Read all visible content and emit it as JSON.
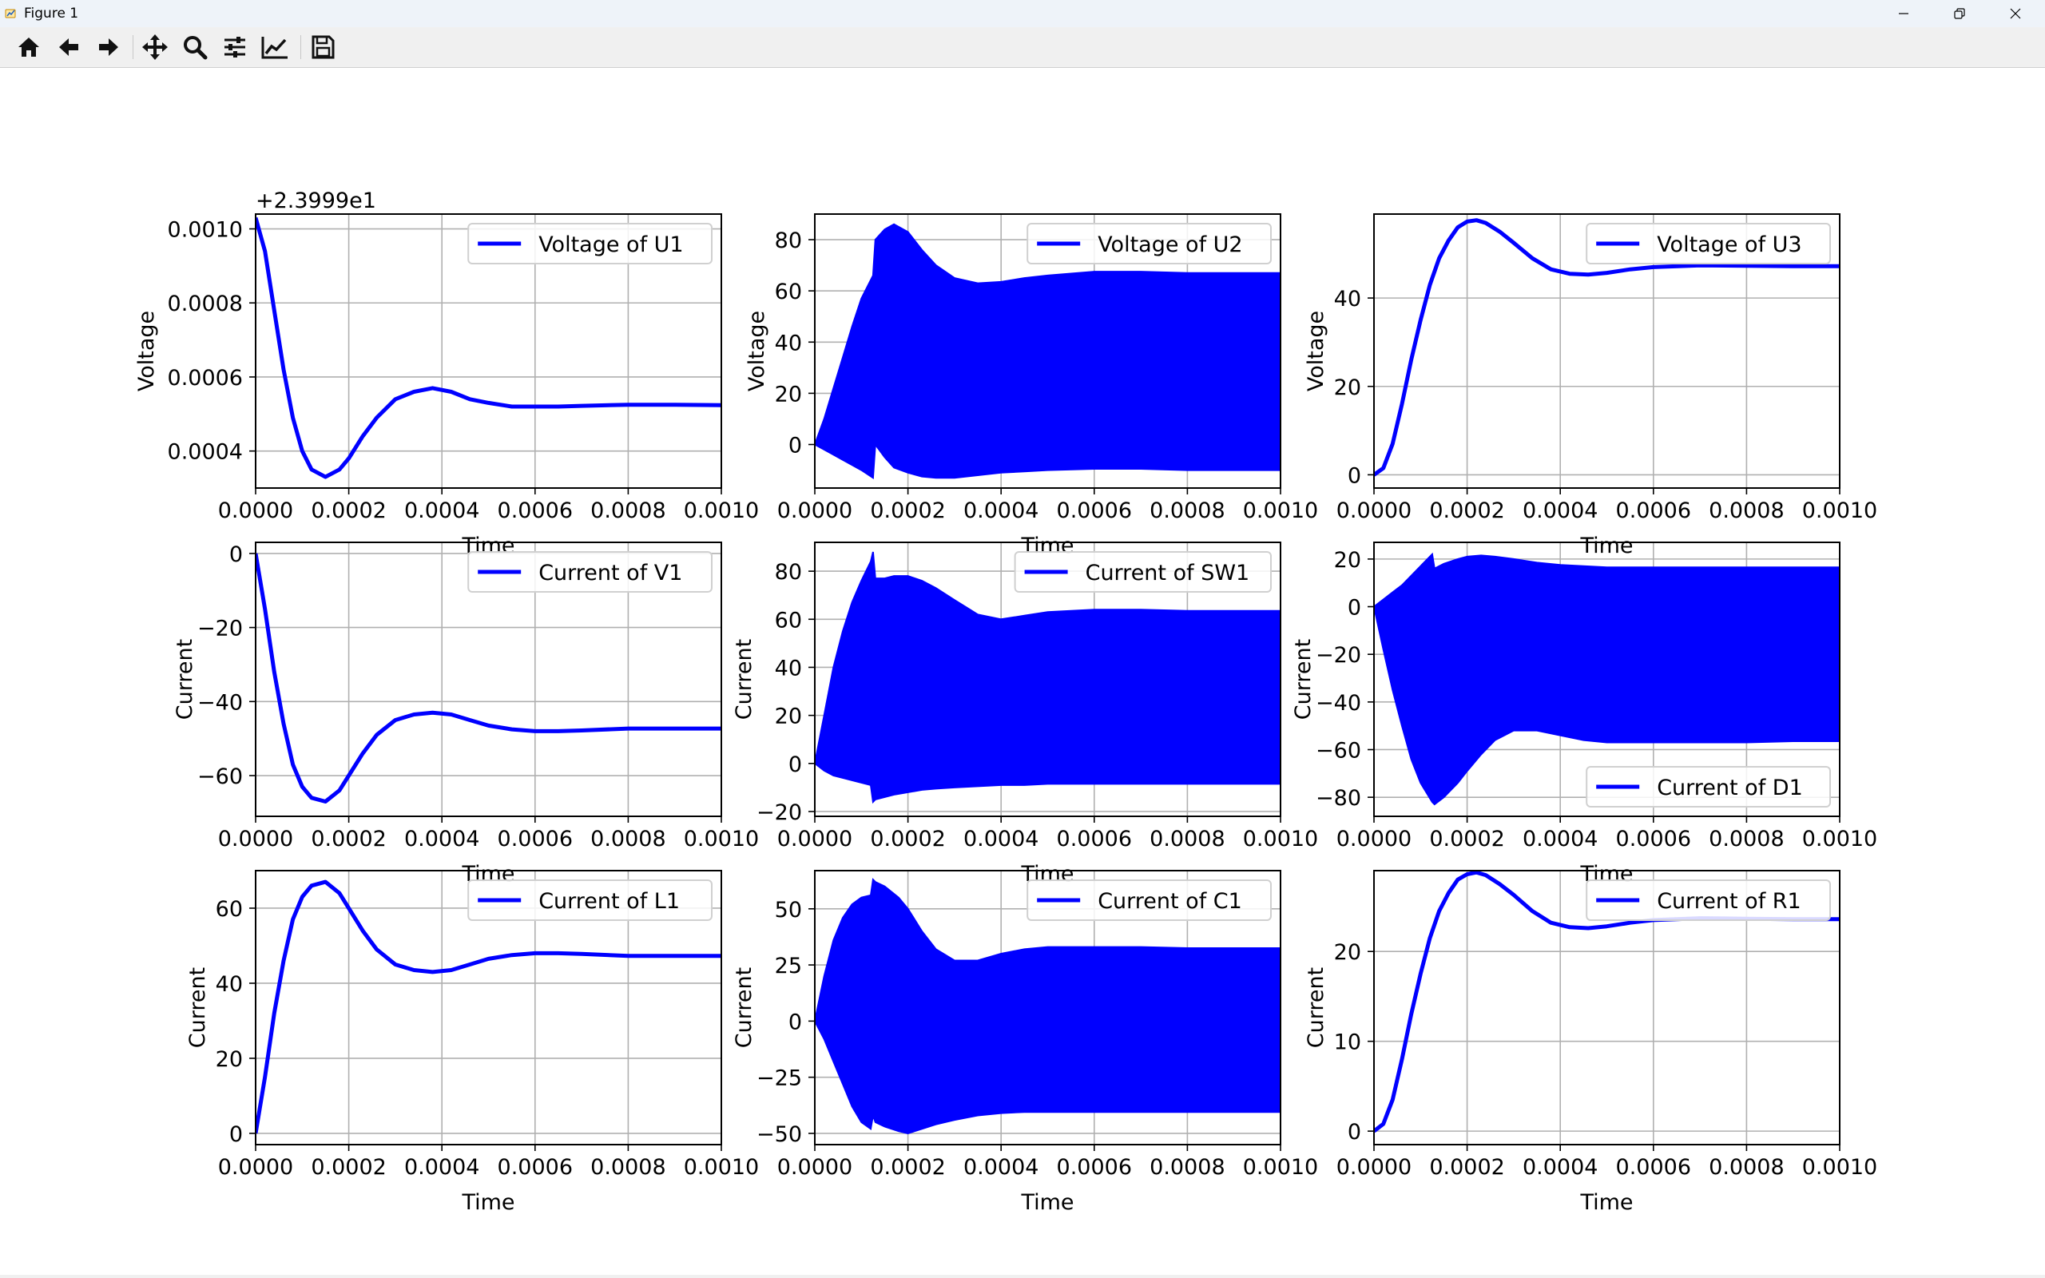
{
  "window": {
    "title": "Figure 1",
    "controls": [
      "minimize-icon",
      "restore-icon",
      "close-icon"
    ]
  },
  "toolbar": {
    "buttons": [
      {
        "name": "home",
        "icon": "home-icon"
      },
      {
        "name": "back",
        "icon": "arrow-left-icon"
      },
      {
        "name": "forward",
        "icon": "arrow-right-icon"
      },
      {
        "name": "pan",
        "icon": "move-icon"
      },
      {
        "name": "zoom",
        "icon": "magnifier-icon"
      },
      {
        "name": "configure-subplots",
        "icon": "sliders-icon"
      },
      {
        "name": "edit-axes",
        "icon": "line-chart-icon"
      },
      {
        "name": "save",
        "icon": "floppy-disk-icon"
      }
    ]
  },
  "colors": {
    "series": "#0000ff",
    "grid": "#b0b0b0",
    "axes": "#000000"
  },
  "chart_data": [
    {
      "type": "line",
      "legend": "Voltage of U1",
      "legend_loc": "upper-right",
      "xlabel": "Time",
      "ylabel": "Voltage",
      "offset_text": "+2.3999e1",
      "xlim": [
        0,
        0.001
      ],
      "ylim": [
        0.0003,
        0.00104
      ],
      "xticks": [
        0,
        0.0002,
        0.0004,
        0.0006,
        0.0008,
        0.001
      ],
      "xtick_labels": [
        "0.0000",
        "0.0002",
        "0.0004",
        "0.0006",
        "0.0008",
        "0.0010"
      ],
      "yticks": [
        0.0004,
        0.0006,
        0.0008,
        0.001
      ],
      "ytick_labels": [
        "0.0004",
        "0.0006",
        "0.0008",
        "0.0010"
      ],
      "grid": true,
      "x": [
        0,
        2e-05,
        4e-05,
        6e-05,
        8e-05,
        0.0001,
        0.00012,
        0.00015,
        0.00018,
        0.0002,
        0.00023,
        0.00026,
        0.0003,
        0.00034,
        0.00038,
        0.00042,
        0.00046,
        0.0005,
        0.00055,
        0.0006,
        0.00065,
        0.0007,
        0.0008,
        0.0009,
        0.001
      ],
      "y": [
        0.00103,
        0.00094,
        0.00078,
        0.00062,
        0.00049,
        0.0004,
        0.00035,
        0.00033,
        0.00035,
        0.00038,
        0.00044,
        0.00049,
        0.00054,
        0.00056,
        0.00057,
        0.00056,
        0.00054,
        0.00053,
        0.00052,
        0.00052,
        0.00052,
        0.000522,
        0.000525,
        0.000525,
        0.000524
      ]
    },
    {
      "type": "area",
      "legend": "Voltage of U2",
      "legend_loc": "upper-right",
      "xlabel": "Time",
      "ylabel": "Voltage",
      "xlim": [
        0,
        0.001
      ],
      "ylim": [
        -17,
        90
      ],
      "xticks": [
        0,
        0.0002,
        0.0004,
        0.0006,
        0.0008,
        0.001
      ],
      "xtick_labels": [
        "0.0000",
        "0.0002",
        "0.0004",
        "0.0006",
        "0.0008",
        "0.0010"
      ],
      "yticks": [
        0,
        20,
        40,
        60,
        80
      ],
      "ytick_labels": [
        "0",
        "20",
        "40",
        "60",
        "80"
      ],
      "grid": true,
      "x": [
        0,
        2e-05,
        4e-05,
        6e-05,
        8e-05,
        0.0001,
        0.000125,
        0.00013,
        0.00015,
        0.00017,
        0.0002,
        0.00023,
        0.00026,
        0.0003,
        0.00035,
        0.0004,
        0.00045,
        0.0005,
        0.0006,
        0.0007,
        0.0008,
        0.0009,
        0.001
      ],
      "upper": [
        0,
        10,
        22,
        34,
        46,
        57,
        66,
        80,
        84,
        86,
        83,
        76,
        70,
        65,
        63,
        63.5,
        65,
        66,
        67.5,
        67.5,
        67,
        67,
        67
      ],
      "lower": [
        0,
        -2,
        -4,
        -6,
        -8,
        -10,
        -13,
        0,
        -5,
        -9,
        -11,
        -12.5,
        -13,
        -13,
        -12,
        -11,
        -10.5,
        -10,
        -9.5,
        -9.5,
        -10,
        -10,
        -10
      ]
    },
    {
      "type": "line",
      "legend": "Voltage of U3",
      "legend_loc": "upper-right",
      "xlabel": "Time",
      "ylabel": "Voltage",
      "xlim": [
        0,
        0.001
      ],
      "ylim": [
        -3,
        59
      ],
      "xticks": [
        0,
        0.0002,
        0.0004,
        0.0006,
        0.0008,
        0.001
      ],
      "xtick_labels": [
        "0.0000",
        "0.0002",
        "0.0004",
        "0.0006",
        "0.0008",
        "0.0010"
      ],
      "yticks": [
        0,
        20,
        40
      ],
      "ytick_labels": [
        "0",
        "20",
        "40"
      ],
      "grid": true,
      "x": [
        0,
        2e-05,
        4e-05,
        6e-05,
        8e-05,
        0.0001,
        0.00012,
        0.00014,
        0.00016,
        0.00018,
        0.0002,
        0.00022,
        0.00024,
        0.00027,
        0.0003,
        0.00034,
        0.00038,
        0.00042,
        0.00046,
        0.0005,
        0.00055,
        0.0006,
        0.0007,
        0.0008,
        0.0009,
        0.001
      ],
      "y": [
        0,
        1.5,
        7,
        16,
        26,
        35,
        43,
        49,
        53,
        56,
        57.3,
        57.6,
        57,
        55,
        52.5,
        49,
        46.5,
        45.5,
        45.3,
        45.7,
        46.5,
        47,
        47.4,
        47.3,
        47.2,
        47.2
      ]
    },
    {
      "type": "line",
      "legend": "Current of V1",
      "legend_loc": "upper-right",
      "xlabel": "Time",
      "ylabel": "Current",
      "xlim": [
        0,
        0.001
      ],
      "ylim": [
        -71,
        3
      ],
      "xticks": [
        0,
        0.0002,
        0.0004,
        0.0006,
        0.0008,
        0.001
      ],
      "xtick_labels": [
        "0.0000",
        "0.0002",
        "0.0004",
        "0.0006",
        "0.0008",
        "0.0010"
      ],
      "yticks": [
        -60,
        -40,
        -20,
        0
      ],
      "ytick_labels": [
        "−60",
        "−40",
        "−20",
        "0"
      ],
      "grid": true,
      "x": [
        0,
        2e-05,
        4e-05,
        6e-05,
        8e-05,
        0.0001,
        0.00012,
        0.00015,
        0.00018,
        0.0002,
        0.00023,
        0.00026,
        0.0003,
        0.00034,
        0.00038,
        0.00042,
        0.00046,
        0.0005,
        0.00055,
        0.0006,
        0.00065,
        0.0007,
        0.0008,
        0.0009,
        0.001
      ],
      "y": [
        0,
        -15,
        -32,
        -46,
        -57,
        -63,
        -66,
        -67,
        -64,
        -60,
        -54,
        -49,
        -45,
        -43.5,
        -43,
        -43.5,
        -45,
        -46.5,
        -47.5,
        -48,
        -48,
        -47.8,
        -47.3,
        -47.3,
        -47.3
      ]
    },
    {
      "type": "area",
      "legend": "Current of SW1",
      "legend_loc": "upper-right",
      "xlabel": "Time",
      "ylabel": "Current",
      "xlim": [
        0,
        0.001
      ],
      "ylim": [
        -22,
        92
      ],
      "xticks": [
        0,
        0.0002,
        0.0004,
        0.0006,
        0.0008,
        0.001
      ],
      "xtick_labels": [
        "0.0000",
        "0.0002",
        "0.0004",
        "0.0006",
        "0.0008",
        "0.0010"
      ],
      "yticks": [
        -20,
        0,
        20,
        40,
        60,
        80
      ],
      "ytick_labels": [
        "−20",
        "0",
        "20",
        "40",
        "60",
        "80"
      ],
      "grid": true,
      "x": [
        0,
        2e-05,
        4e-05,
        6e-05,
        8e-05,
        0.0001,
        0.00012,
        0.000125,
        0.00013,
        0.00015,
        0.00017,
        0.0002,
        0.00023,
        0.00026,
        0.0003,
        0.00035,
        0.0004,
        0.00045,
        0.0005,
        0.0006,
        0.0007,
        0.0008,
        0.0009,
        0.001
      ],
      "upper": [
        0,
        20,
        40,
        55,
        67,
        76,
        84,
        88,
        77,
        77,
        78,
        78,
        76,
        73,
        68,
        62,
        60,
        61.5,
        63,
        64,
        64,
        63.5,
        63.5,
        63.5
      ],
      "lower": [
        0,
        -3,
        -5,
        -6,
        -7,
        -8,
        -9,
        -16,
        -15,
        -14,
        -13,
        -12,
        -11,
        -10.5,
        -10,
        -9.5,
        -9,
        -9,
        -8.5,
        -8.5,
        -8.5,
        -8.5,
        -8.5,
        -8.5
      ]
    },
    {
      "type": "area",
      "legend": "Current of D1",
      "legend_loc": "lower-right",
      "xlabel": "Time",
      "ylabel": "Current",
      "xlim": [
        0,
        0.001
      ],
      "ylim": [
        -88,
        27
      ],
      "xticks": [
        0,
        0.0002,
        0.0004,
        0.0006,
        0.0008,
        0.001
      ],
      "xtick_labels": [
        "0.0000",
        "0.0002",
        "0.0004",
        "0.0006",
        "0.0008",
        "0.0010"
      ],
      "yticks": [
        -80,
        -60,
        -40,
        -20,
        0,
        20
      ],
      "ytick_labels": [
        "−80",
        "−60",
        "−40",
        "−20",
        "0",
        "20"
      ],
      "grid": true,
      "x": [
        0,
        2e-05,
        4e-05,
        6e-05,
        8e-05,
        0.0001,
        0.000125,
        0.00013,
        0.00015,
        0.00018,
        0.0002,
        0.00023,
        0.00026,
        0.0003,
        0.00035,
        0.0004,
        0.00045,
        0.0005,
        0.0006,
        0.0007,
        0.0008,
        0.0009,
        0.001
      ],
      "upper": [
        0,
        3,
        6,
        9,
        13,
        17,
        22,
        16,
        18,
        20,
        21,
        21.5,
        21,
        20,
        18.5,
        17.5,
        17,
        16.5,
        16.5,
        16.5,
        16.5,
        16.5,
        16.5
      ],
      "lower": [
        0,
        -18,
        -35,
        -50,
        -64,
        -74,
        -82,
        -83,
        -80,
        -74,
        -69,
        -62,
        -56,
        -52,
        -52,
        -54,
        -56,
        -57,
        -57,
        -57,
        -57,
        -56.5,
        -56.5
      ]
    },
    {
      "type": "line",
      "legend": "Current of L1",
      "legend_loc": "upper-right",
      "xlabel": "Time",
      "ylabel": "Current",
      "xlim": [
        0,
        0.001
      ],
      "ylim": [
        -3,
        70
      ],
      "xticks": [
        0,
        0.0002,
        0.0004,
        0.0006,
        0.0008,
        0.001
      ],
      "xtick_labels": [
        "0.0000",
        "0.0002",
        "0.0004",
        "0.0006",
        "0.0008",
        "0.0010"
      ],
      "yticks": [
        0,
        20,
        40,
        60
      ],
      "ytick_labels": [
        "0",
        "20",
        "40",
        "60"
      ],
      "grid": true,
      "x": [
        0,
        2e-05,
        4e-05,
        6e-05,
        8e-05,
        0.0001,
        0.00012,
        0.00015,
        0.00018,
        0.0002,
        0.00023,
        0.00026,
        0.0003,
        0.00034,
        0.00038,
        0.00042,
        0.00046,
        0.0005,
        0.00055,
        0.0006,
        0.00065,
        0.0007,
        0.0008,
        0.0009,
        0.001
      ],
      "y": [
        0,
        15,
        32,
        46,
        57,
        63,
        66,
        67,
        64,
        60,
        54,
        49,
        45,
        43.5,
        43,
        43.5,
        45,
        46.5,
        47.5,
        48,
        48,
        47.8,
        47.3,
        47.3,
        47.3
      ]
    },
    {
      "type": "area",
      "legend": "Current of C1",
      "legend_loc": "upper-right",
      "xlabel": "Time",
      "ylabel": "Current",
      "xlim": [
        0,
        0.001
      ],
      "ylim": [
        -55,
        67
      ],
      "xticks": [
        0,
        0.0002,
        0.0004,
        0.0006,
        0.0008,
        0.001
      ],
      "xtick_labels": [
        "0.0000",
        "0.0002",
        "0.0004",
        "0.0006",
        "0.0008",
        "0.0010"
      ],
      "yticks": [
        -50,
        -25,
        0,
        25,
        50
      ],
      "ytick_labels": [
        "−50",
        "−25",
        "0",
        "25",
        "50"
      ],
      "grid": true,
      "x": [
        0,
        2e-05,
        4e-05,
        6e-05,
        8e-05,
        0.0001,
        0.00012,
        0.000125,
        0.00013,
        0.00015,
        0.00018,
        0.0002,
        0.00023,
        0.00026,
        0.0003,
        0.00035,
        0.0004,
        0.00045,
        0.0005,
        0.0006,
        0.0007,
        0.0008,
        0.0009,
        0.001
      ],
      "upper": [
        0,
        20,
        36,
        46,
        52,
        55,
        56,
        63,
        62,
        60,
        55,
        50,
        40,
        32,
        27,
        27,
        30,
        32,
        33,
        33,
        33,
        32.5,
        32.5,
        32.5
      ],
      "lower": [
        0,
        -8,
        -18,
        -28,
        -38,
        -45,
        -48,
        -42,
        -45,
        -47,
        -49,
        -50,
        -48,
        -46,
        -44,
        -42,
        -41,
        -40.5,
        -40.5,
        -40.5,
        -40.5,
        -40.5,
        -40.5,
        -40.5
      ]
    },
    {
      "type": "line",
      "legend": "Current of R1",
      "legend_loc": "upper-right",
      "xlabel": "Time",
      "ylabel": "Current",
      "xlim": [
        0,
        0.001
      ],
      "ylim": [
        -1.5,
        29
      ],
      "xticks": [
        0,
        0.0002,
        0.0004,
        0.0006,
        0.0008,
        0.001
      ],
      "xtick_labels": [
        "0.0000",
        "0.0002",
        "0.0004",
        "0.0006",
        "0.0008",
        "0.0010"
      ],
      "yticks": [
        0,
        10,
        20
      ],
      "ytick_labels": [
        "0",
        "10",
        "20"
      ],
      "grid": true,
      "x": [
        0,
        2e-05,
        4e-05,
        6e-05,
        8e-05,
        0.0001,
        0.00012,
        0.00014,
        0.00016,
        0.00018,
        0.0002,
        0.00022,
        0.00024,
        0.00027,
        0.0003,
        0.00034,
        0.00038,
        0.00042,
        0.00046,
        0.0005,
        0.00055,
        0.0006,
        0.0007,
        0.0008,
        0.0009,
        0.001
      ],
      "y": [
        0,
        0.8,
        3.5,
        8,
        13,
        17.5,
        21.5,
        24.5,
        26.5,
        28,
        28.6,
        28.8,
        28.5,
        27.5,
        26.3,
        24.5,
        23.2,
        22.7,
        22.6,
        22.8,
        23.2,
        23.5,
        23.7,
        23.65,
        23.6,
        23.6
      ]
    }
  ]
}
